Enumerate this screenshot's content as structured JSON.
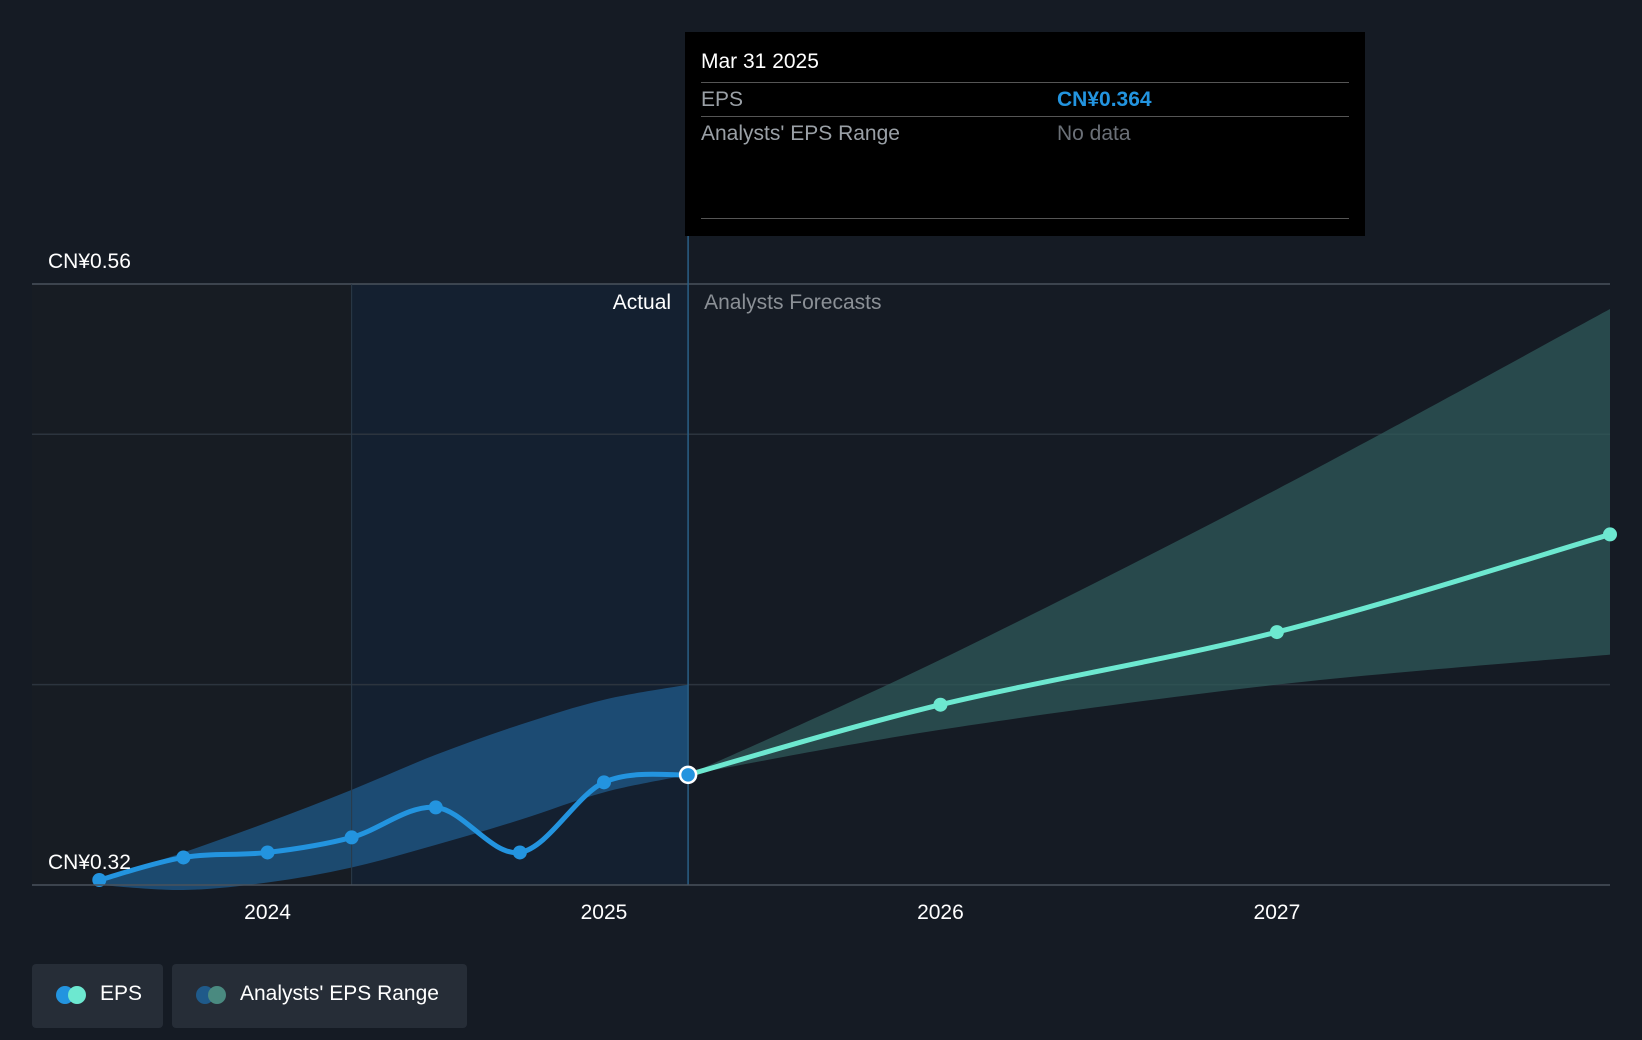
{
  "tooltip": {
    "date": "Mar 31 2025",
    "eps_label": "EPS",
    "eps_value": "CN¥0.364",
    "range_label": "Analysts' EPS Range",
    "range_value": "No data"
  },
  "legend": {
    "eps": "EPS",
    "range": "Analysts' EPS Range"
  },
  "colors": {
    "background": "#151b24",
    "actual_line": "#2394df",
    "forecast_line": "#6de8d0",
    "actual_band": "#1f5a8a",
    "forecast_band": "#2f5a5a",
    "tooltip_eps_value": "#2394df",
    "tooltip_no_data": "#6b7077"
  },
  "chart_data": {
    "type": "line",
    "y_axis": {
      "ylim": [
        0.32,
        0.56
      ],
      "labels": [
        "CN¥0.56",
        "CN¥0.32"
      ],
      "label_values": [
        0.56,
        0.32
      ]
    },
    "x_axis": {
      "ticks": [
        "2024",
        "2025",
        "2026",
        "2027"
      ],
      "tick_values": [
        2024.0,
        2025.0,
        2026.0,
        2027.0
      ],
      "xlim": [
        2023.3,
        2027.99
      ]
    },
    "gridlines_y": [
      0.56,
      0.5,
      0.4
    ],
    "sections": {
      "actual": "Actual",
      "forecast": "Analysts Forecasts",
      "actual_start": 2024.25,
      "divider": 2025.25
    },
    "series": [
      {
        "name": "EPS",
        "kind": "actual",
        "points": [
          {
            "x": 2023.5,
            "y": 0.322
          },
          {
            "x": 2023.75,
            "y": 0.331
          },
          {
            "x": 2024.0,
            "y": 0.333
          },
          {
            "x": 2024.25,
            "y": 0.339
          },
          {
            "x": 2024.5,
            "y": 0.351
          },
          {
            "x": 2024.75,
            "y": 0.333
          },
          {
            "x": 2025.0,
            "y": 0.361
          },
          {
            "x": 2025.25,
            "y": 0.364
          }
        ]
      },
      {
        "name": "EPS",
        "kind": "forecast",
        "points": [
          {
            "x": 2025.25,
            "y": 0.364
          },
          {
            "x": 2026.0,
            "y": 0.392
          },
          {
            "x": 2027.0,
            "y": 0.421
          },
          {
            "x": 2027.99,
            "y": 0.46
          }
        ]
      }
    ],
    "ranges": [
      {
        "name": "Analysts' EPS Range",
        "kind": "actual",
        "upper": [
          {
            "x": 2023.5,
            "y": 0.322
          },
          {
            "x": 2023.75,
            "y": 0.333
          },
          {
            "x": 2024.0,
            "y": 0.345
          },
          {
            "x": 2024.25,
            "y": 0.358
          },
          {
            "x": 2024.5,
            "y": 0.372
          },
          {
            "x": 2024.75,
            "y": 0.384
          },
          {
            "x": 2025.0,
            "y": 0.394
          },
          {
            "x": 2025.25,
            "y": 0.4
          }
        ],
        "lower": [
          {
            "x": 2025.25,
            "y": 0.364
          },
          {
            "x": 2025.0,
            "y": 0.357
          },
          {
            "x": 2024.75,
            "y": 0.346
          },
          {
            "x": 2024.5,
            "y": 0.336
          },
          {
            "x": 2024.25,
            "y": 0.327
          },
          {
            "x": 2024.0,
            "y": 0.321
          },
          {
            "x": 2023.75,
            "y": 0.318
          },
          {
            "x": 2023.5,
            "y": 0.32
          }
        ]
      },
      {
        "name": "Analysts' EPS Range",
        "kind": "forecast",
        "upper": [
          {
            "x": 2025.25,
            "y": 0.364
          },
          {
            "x": 2026.0,
            "y": 0.41
          },
          {
            "x": 2027.0,
            "y": 0.478
          },
          {
            "x": 2027.99,
            "y": 0.55
          }
        ],
        "lower": [
          {
            "x": 2027.99,
            "y": 0.412
          },
          {
            "x": 2027.0,
            "y": 0.4
          },
          {
            "x": 2026.0,
            "y": 0.382
          },
          {
            "x": 2025.25,
            "y": 0.364
          }
        ]
      }
    ],
    "highlight_point": {
      "x": 2025.25,
      "y": 0.364
    }
  }
}
